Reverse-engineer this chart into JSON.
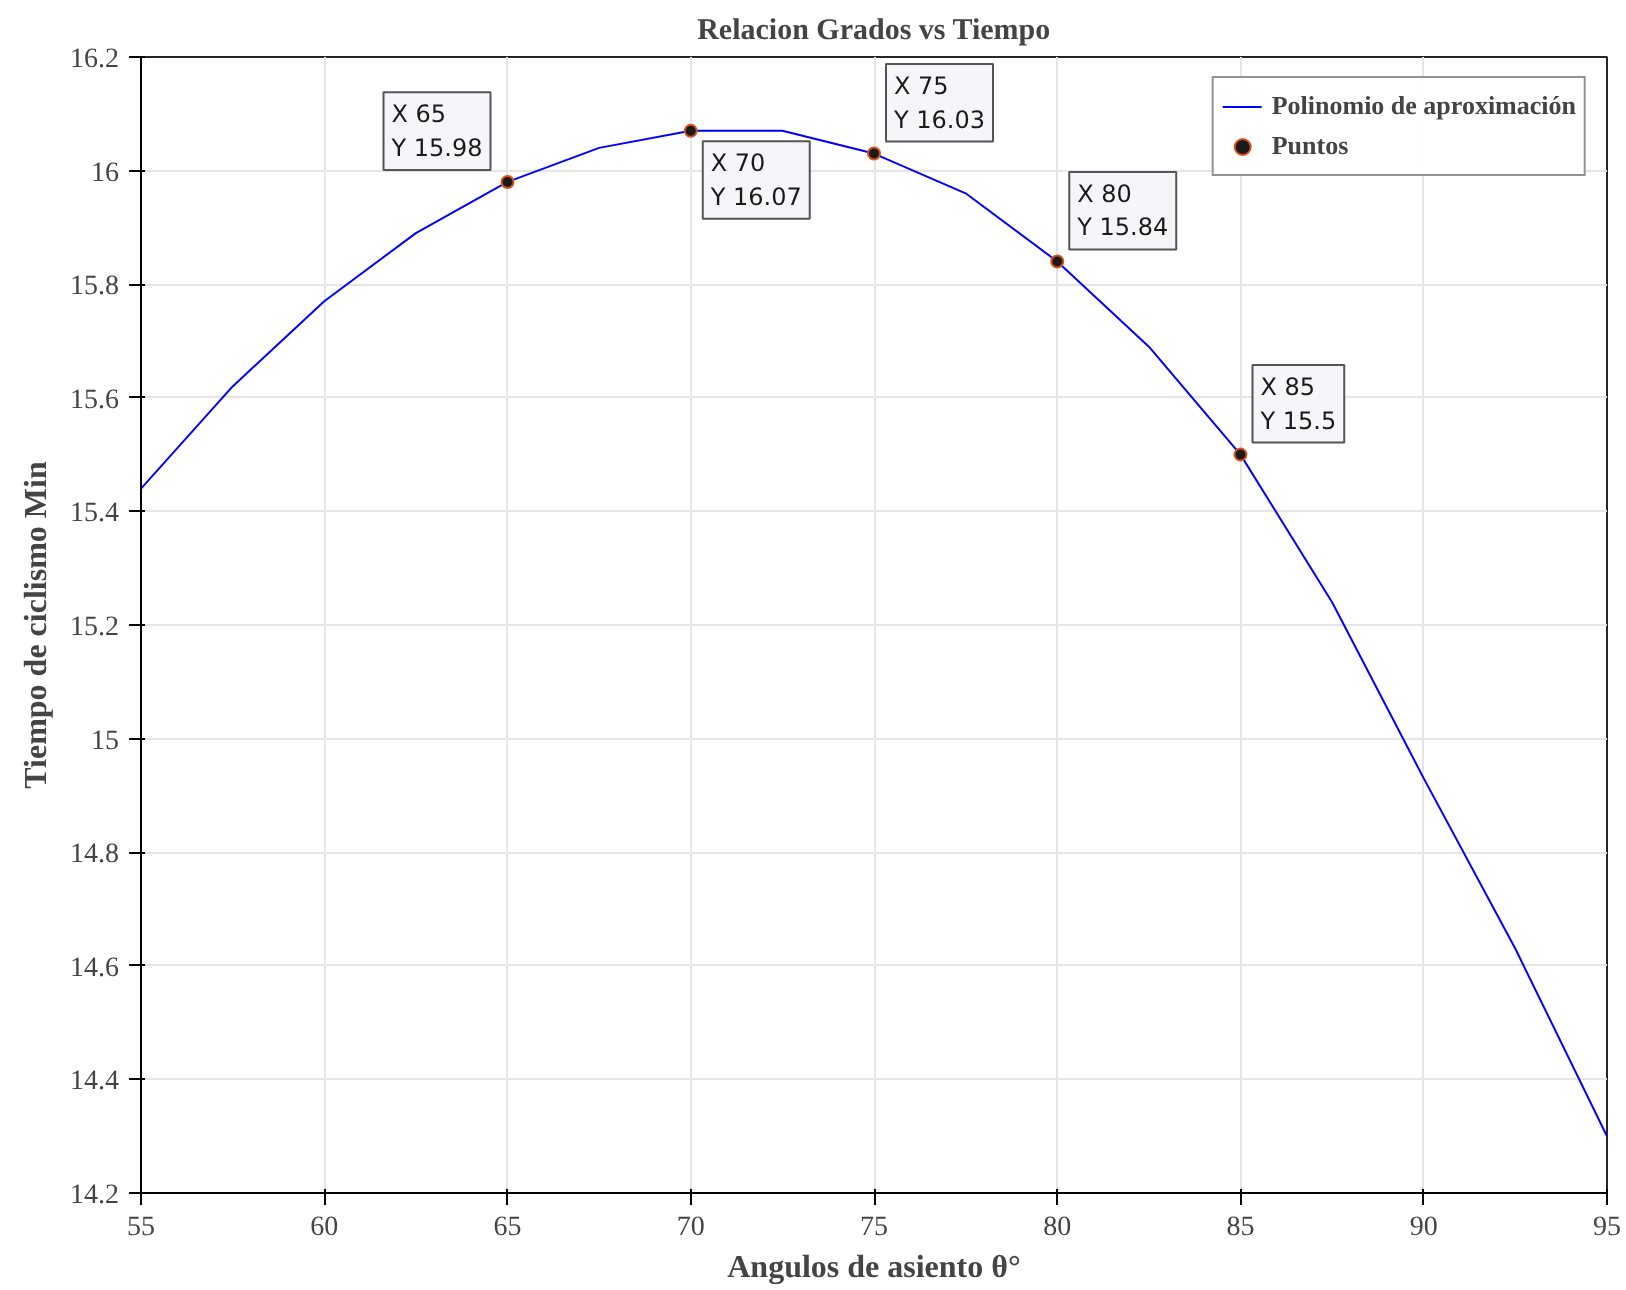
{
  "chart_data": {
    "type": "line",
    "title": "Relacion Grados vs Tiempo",
    "xlabel": "Angulos de asiento θ°",
    "ylabel": "Tiempo de ciclismo Min",
    "series": [
      {
        "name": "Polinomio de aproximación",
        "color": "#0000ff",
        "marker": "none",
        "line_style": "solid",
        "x": [
          55,
          57.5,
          60,
          62.5,
          65,
          67.5,
          70,
          72.5,
          75,
          77.5,
          80,
          82.5,
          85,
          87.5,
          90,
          92.5,
          95
        ],
        "values": [
          15.44,
          15.62,
          15.77,
          15.89,
          15.98,
          16.04,
          16.07,
          16.07,
          16.03,
          15.96,
          15.84,
          15.69,
          15.5,
          15.24,
          14.93,
          14.63,
          14.3
        ]
      },
      {
        "name": "Puntos",
        "type": "scatter",
        "color": "#d95319",
        "marker": "circle",
        "x": [
          65,
          70,
          75,
          80,
          85
        ],
        "values": [
          15.98,
          16.07,
          16.03,
          15.84,
          15.5
        ]
      }
    ],
    "annotations": [
      {
        "text": "X 65\nY 15.98",
        "x": 65,
        "y": 15.98
      },
      {
        "text": "X 70\nY 16.07",
        "x": 70,
        "y": 16.07
      },
      {
        "text": "X 75\nY 16.03",
        "x": 75,
        "y": 16.03
      },
      {
        "text": "X 80\nY 15.84",
        "x": 80,
        "y": 15.84
      },
      {
        "text": "X 85\nY 15.5",
        "x": 85,
        "y": 15.5
      }
    ],
    "xlim": [
      55,
      95
    ],
    "xticks": [
      55,
      60,
      65,
      70,
      75,
      80,
      85,
      90,
      95
    ],
    "ylim": [
      14.2,
      16.2
    ],
    "yticks": [
      14.2,
      14.4,
      14.6,
      14.8,
      15,
      15.2,
      15.4,
      15.6,
      15.8,
      16,
      16.2
    ],
    "grid": true,
    "legend": "top right"
  }
}
